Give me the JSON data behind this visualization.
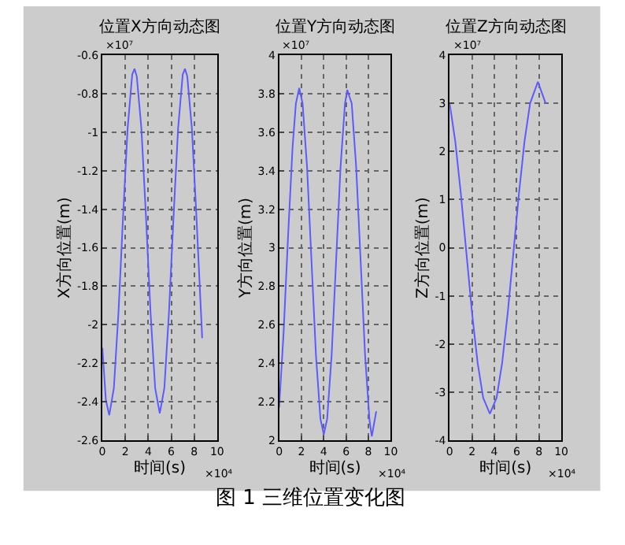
{
  "chart_data": [
    {
      "type": "line",
      "title": "位置X方向动态图",
      "xlabel": "时间(s)",
      "ylabel": "X方向位置(m)",
      "annotations": [
        "×10⁷",
        "×10⁴"
      ],
      "grid": true,
      "marker": "none",
      "line_style": "solid",
      "x": [
        0,
        0.3,
        0.6,
        1.0,
        1.4,
        1.8,
        2.2,
        2.6,
        2.8,
        3.0,
        3.4,
        3.8,
        4.2,
        4.6,
        5.0,
        5.4,
        5.8,
        6.2,
        6.6,
        7.0,
        7.2,
        7.4,
        7.8,
        8.2,
        8.7
      ],
      "series": [
        {
          "color": "#5b5bff",
          "values": [
            -2.12,
            -2.39,
            -2.47,
            -2.33,
            -1.94,
            -1.44,
            -0.98,
            -0.7,
            -0.67,
            -0.71,
            -0.98,
            -1.44,
            -1.94,
            -2.33,
            -2.46,
            -2.33,
            -1.94,
            -1.44,
            -0.98,
            -0.7,
            -0.67,
            -0.71,
            -0.98,
            -1.44,
            -2.07
          ]
        }
      ],
      "xlim": [
        0,
        10
      ],
      "xticks": [
        0,
        2,
        4,
        6,
        8,
        10
      ],
      "ylim": [
        -2.6,
        -0.6
      ],
      "yticks": [
        -2.6,
        -2.4,
        -2.2,
        -2,
        -1.8,
        -1.6,
        -1.4,
        -1.2,
        -1,
        -0.8,
        -0.6
      ]
    },
    {
      "type": "line",
      "title": "位置Y方向动态图",
      "xlabel": "时间(s)",
      "ylabel": "Y方向位置(m)",
      "annotations": [
        "×10⁷",
        "×10⁴"
      ],
      "grid": true,
      "marker": "none",
      "line_style": "solid",
      "x": [
        0,
        0.4,
        0.8,
        1.2,
        1.5,
        1.8,
        2.1,
        2.5,
        2.9,
        3.3,
        3.7,
        4.0,
        4.3,
        4.7,
        5.1,
        5.5,
        5.9,
        6.1,
        6.5,
        6.9,
        7.3,
        7.7,
        8.1,
        8.3,
        8.7
      ],
      "series": [
        {
          "color": "#5b5bff",
          "values": [
            2.17,
            2.56,
            3.06,
            3.52,
            3.75,
            3.83,
            3.75,
            3.42,
            2.93,
            2.44,
            2.11,
            2.03,
            2.11,
            2.44,
            2.93,
            3.42,
            3.75,
            3.82,
            3.75,
            3.42,
            2.93,
            2.44,
            2.1,
            2.02,
            2.15
          ]
        }
      ],
      "xlim": [
        0,
        10
      ],
      "xticks": [
        0,
        2,
        4,
        6,
        8,
        10
      ],
      "ylim": [
        2,
        4
      ],
      "yticks": [
        2,
        2.2,
        2.4,
        2.6,
        2.8,
        3,
        3.2,
        3.4,
        3.6,
        3.8,
        4
      ]
    },
    {
      "type": "line",
      "title": "位置Z方向动态图",
      "xlabel": "时间(s)",
      "ylabel": "Z方向位置(m)",
      "annotations": [
        "×10⁷",
        "×10⁴"
      ],
      "grid": true,
      "marker": "none",
      "line_style": "solid",
      "x": [
        0,
        0.5,
        1.0,
        1.5,
        2.0,
        2.5,
        3.0,
        3.6,
        4.2,
        4.7,
        5.2,
        5.7,
        6.2,
        6.7,
        7.2,
        7.9,
        8.6
      ],
      "series": [
        {
          "color": "#5b5bff",
          "values": [
            3.0,
            2.21,
            1.12,
            -0.12,
            -1.35,
            -2.39,
            -3.12,
            -3.45,
            -3.12,
            -2.39,
            -1.35,
            -0.12,
            1.12,
            2.21,
            3.0,
            3.45,
            3.0
          ]
        }
      ],
      "xlim": [
        0,
        10
      ],
      "xticks": [
        0,
        2,
        4,
        6,
        8,
        10
      ],
      "ylim": [
        -4,
        4
      ],
      "yticks": [
        -4,
        -3,
        -2,
        -1,
        0,
        1,
        2,
        3,
        4
      ]
    },
    {
      "type": "other",
      "title": "图 1 三维位置变化图"
    }
  ]
}
